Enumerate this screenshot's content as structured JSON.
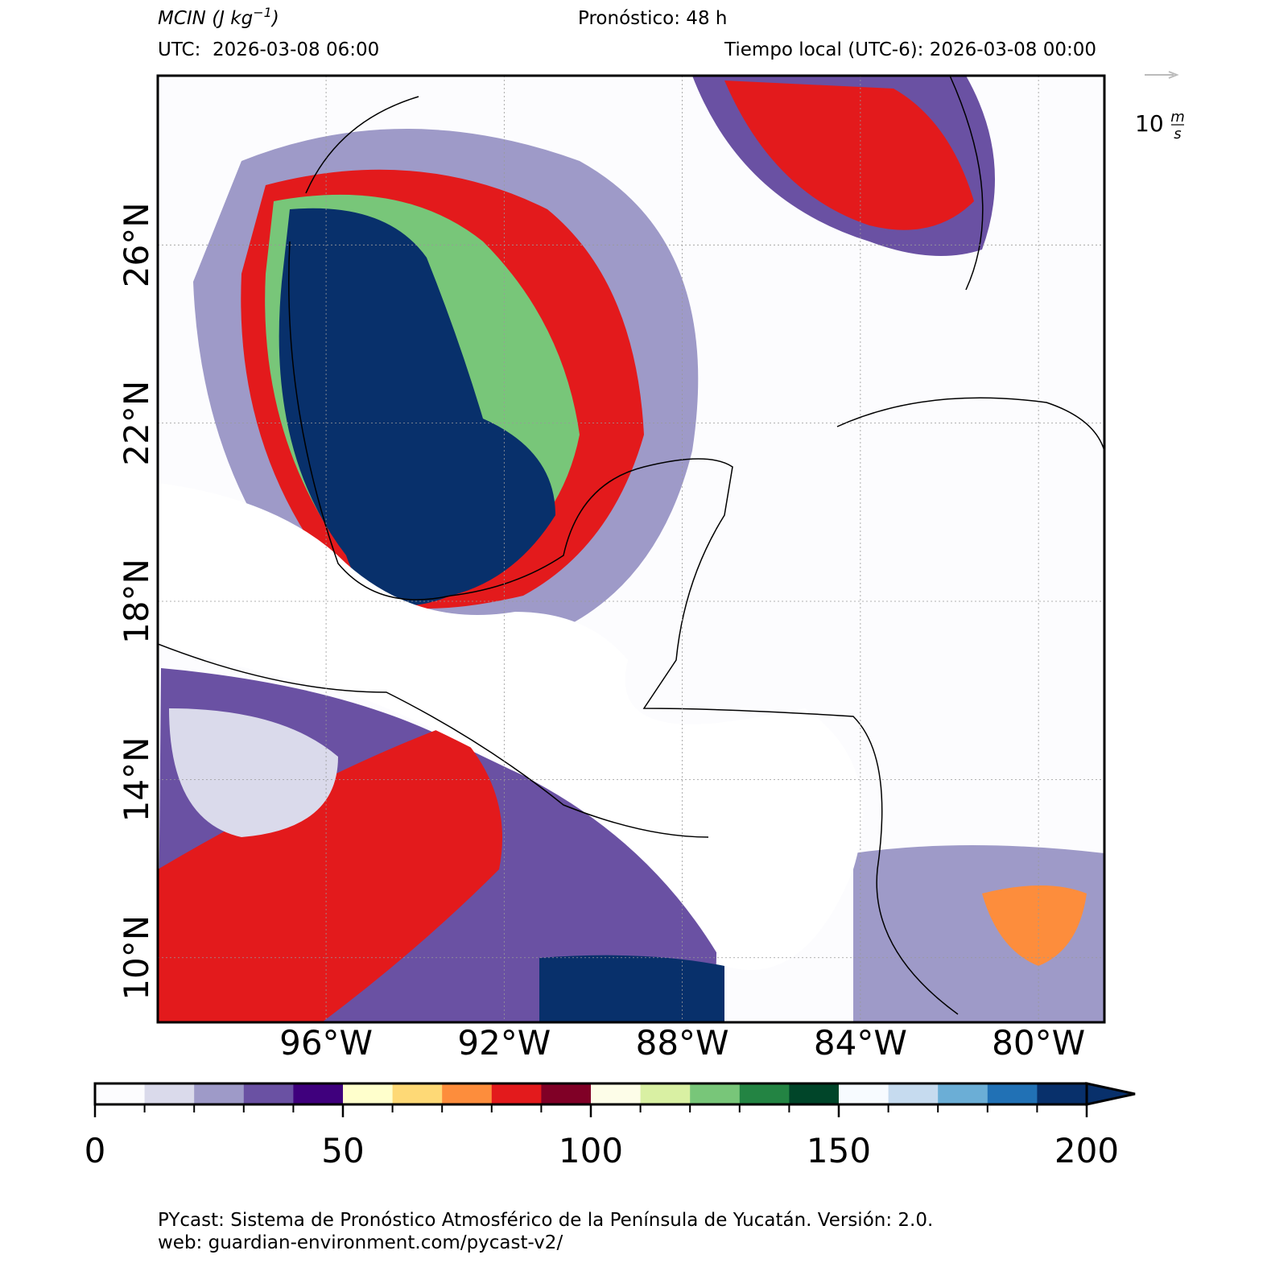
{
  "header": {
    "title": "MCIN",
    "title_unit": "(J kg",
    "title_exponent": "−1",
    "title_close": ")",
    "forecast": "Pronóstico: 48 h",
    "utc": "UTC:  2026-03-08 06:00",
    "local": "Tiempo local (UTC-6): 2026-03-08 00:00"
  },
  "map": {
    "xlim": [
      -99.78,
      -78.52
    ],
    "ylim": [
      8.55,
      29.8
    ],
    "xticks": [
      {
        "value": -96,
        "label": "96°W"
      },
      {
        "value": -92,
        "label": "92°W"
      },
      {
        "value": -88,
        "label": "88°W"
      },
      {
        "value": -84,
        "label": "84°W"
      },
      {
        "value": -80,
        "label": "80°W"
      }
    ],
    "yticks": [
      {
        "value": 10,
        "label": "10°N"
      },
      {
        "value": 14,
        "label": "14°N"
      },
      {
        "value": 18,
        "label": "18°N"
      },
      {
        "value": 22,
        "label": "22°N"
      },
      {
        "value": 26,
        "label": "26°N"
      }
    ],
    "grid": true
  },
  "wind_key": {
    "value": "10",
    "unit_top": "m",
    "unit_bottom": "s"
  },
  "colorbar": {
    "lim": [
      0,
      200
    ],
    "ticks": [
      0,
      50,
      100,
      150,
      200
    ],
    "extend": "max",
    "colors": [
      "#fcfcfe",
      "#dadaeb",
      "#9e9ac8",
      "#6a51a3",
      "#3f007d",
      "#ffffcc",
      "#fed976",
      "#fd8d3c",
      "#e31a1c",
      "#800026",
      "#fdfde8",
      "#d9f0a3",
      "#78c679",
      "#238443",
      "#004529",
      "#f7fbff",
      "#c6dbef",
      "#6baed6",
      "#2171b5",
      "#08306b"
    ]
  },
  "footer": {
    "line1": "PYcast: Sistema de Pronóstico Atmosférico de la Península de Yucatán. Versión: 2.0.",
    "line2": "web: guardian-environment.com/pycast-v2/"
  }
}
